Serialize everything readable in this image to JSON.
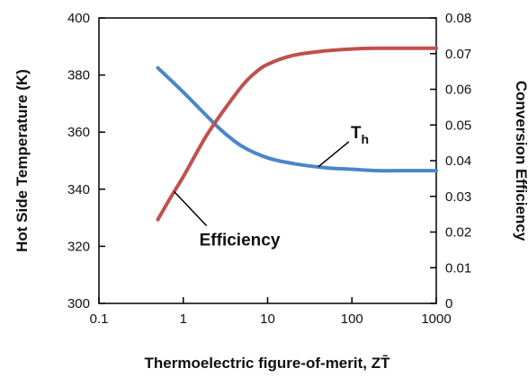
{
  "chart_data": {
    "type": "line",
    "xlabel": "Thermoelectric figure-of-merit, ZT̄",
    "ylabel_left": "Hot Side Temperature (K)",
    "ylabel_right": "Conversion Efficiency",
    "x_scale": "log",
    "xlim": [
      0.1,
      1000
    ],
    "ylim_left": [
      300,
      400
    ],
    "ylim_right": [
      0,
      0.08
    ],
    "x_ticks": [
      "0.1",
      "1",
      "10",
      "100",
      "1000"
    ],
    "y_left_ticks": [
      "300",
      "320",
      "340",
      "360",
      "380",
      "400"
    ],
    "y_right_ticks": [
      "0",
      "0.01",
      "0.02",
      "0.03",
      "0.04",
      "0.05",
      "0.06",
      "0.07",
      "0.08"
    ],
    "grid": false,
    "series": [
      {
        "name": "Th",
        "axis": "left",
        "color": "#4a86c8",
        "x": [
          0.5,
          1,
          2,
          3,
          5,
          10,
          20,
          50,
          100,
          200,
          500,
          1000
        ],
        "y": [
          382.5,
          374,
          365,
          360,
          355,
          351,
          349,
          347.5,
          347,
          346.5,
          346.5,
          346.5
        ]
      },
      {
        "name": "Efficiency",
        "axis": "right",
        "color": "#c0504d",
        "x": [
          0.5,
          0.7,
          1,
          1.5,
          2,
          3,
          5,
          7,
          10,
          20,
          50,
          100,
          200,
          500,
          1000
        ],
        "y": [
          0.0235,
          0.0295,
          0.0355,
          0.043,
          0.048,
          0.054,
          0.061,
          0.0645,
          0.067,
          0.0695,
          0.0708,
          0.0713,
          0.0715,
          0.0715,
          0.0715
        ]
      }
    ],
    "annotations": [
      {
        "label": "T",
        "subscript": "h",
        "series": "Th",
        "at_x": 40
      },
      {
        "label": "Efficiency",
        "series": "Efficiency",
        "at_x": 0.78
      }
    ]
  }
}
